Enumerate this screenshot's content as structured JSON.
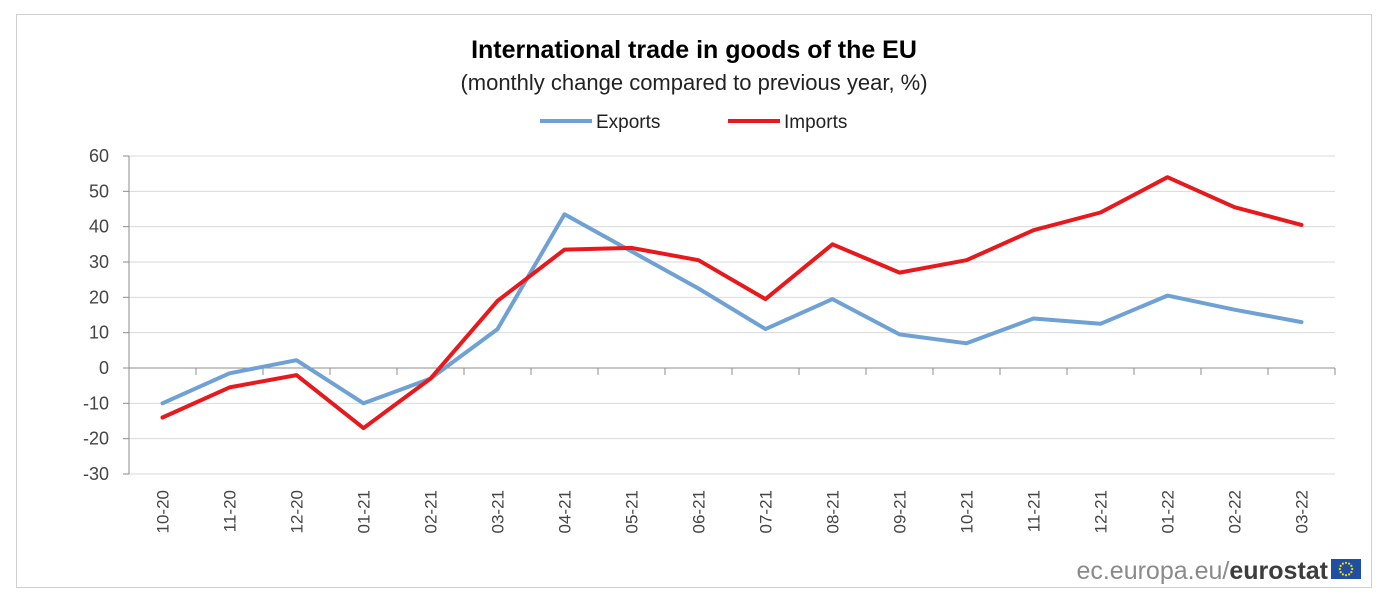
{
  "chart_data": {
    "type": "line",
    "title": "International trade in goods of the EU",
    "subtitle": "(monthly change compared to previous year, %)",
    "xlabel": "",
    "ylabel": "",
    "ylim": [
      -30,
      60
    ],
    "yticks": [
      60,
      50,
      40,
      30,
      20,
      10,
      0,
      -10,
      -20,
      -30
    ],
    "ytick_labels": [
      "60",
      "50",
      "40",
      "30",
      "20",
      "10",
      "0",
      "-10",
      "-20",
      "-30"
    ],
    "grid": true,
    "legend_position": "top-center",
    "categories": [
      "10-20",
      "11-20",
      "12-20",
      "01-21",
      "02-21",
      "03-21",
      "04-21",
      "05-21",
      "06-21",
      "07-21",
      "08-21",
      "09-21",
      "10-21",
      "11-21",
      "12-21",
      "01-22",
      "02-22",
      "03-22"
    ],
    "series": [
      {
        "name": "Exports",
        "color": "#6fa1d4",
        "values": [
          -10,
          -1.5,
          2.2,
          -10,
          -3,
          11,
          43.5,
          33,
          22.5,
          11,
          19.5,
          9.5,
          7,
          14,
          12.5,
          20.5,
          16.5,
          13
        ]
      },
      {
        "name": "Imports",
        "color": "#e8191c",
        "values": [
          -14,
          -5.5,
          -2,
          -17,
          -3,
          19,
          33.5,
          34,
          30.5,
          19.5,
          35,
          27,
          30.5,
          39,
          44,
          54,
          45.5,
          40.5
        ]
      }
    ]
  },
  "source": {
    "prefix": "ec.europa.eu/",
    "brand": "eurostat"
  },
  "colors": {
    "gridline": "#d9d9d9",
    "axis": "#8c8c8c",
    "eu_flag_blue": "#1f4fa0",
    "eu_flag_star": "#ffd600"
  }
}
